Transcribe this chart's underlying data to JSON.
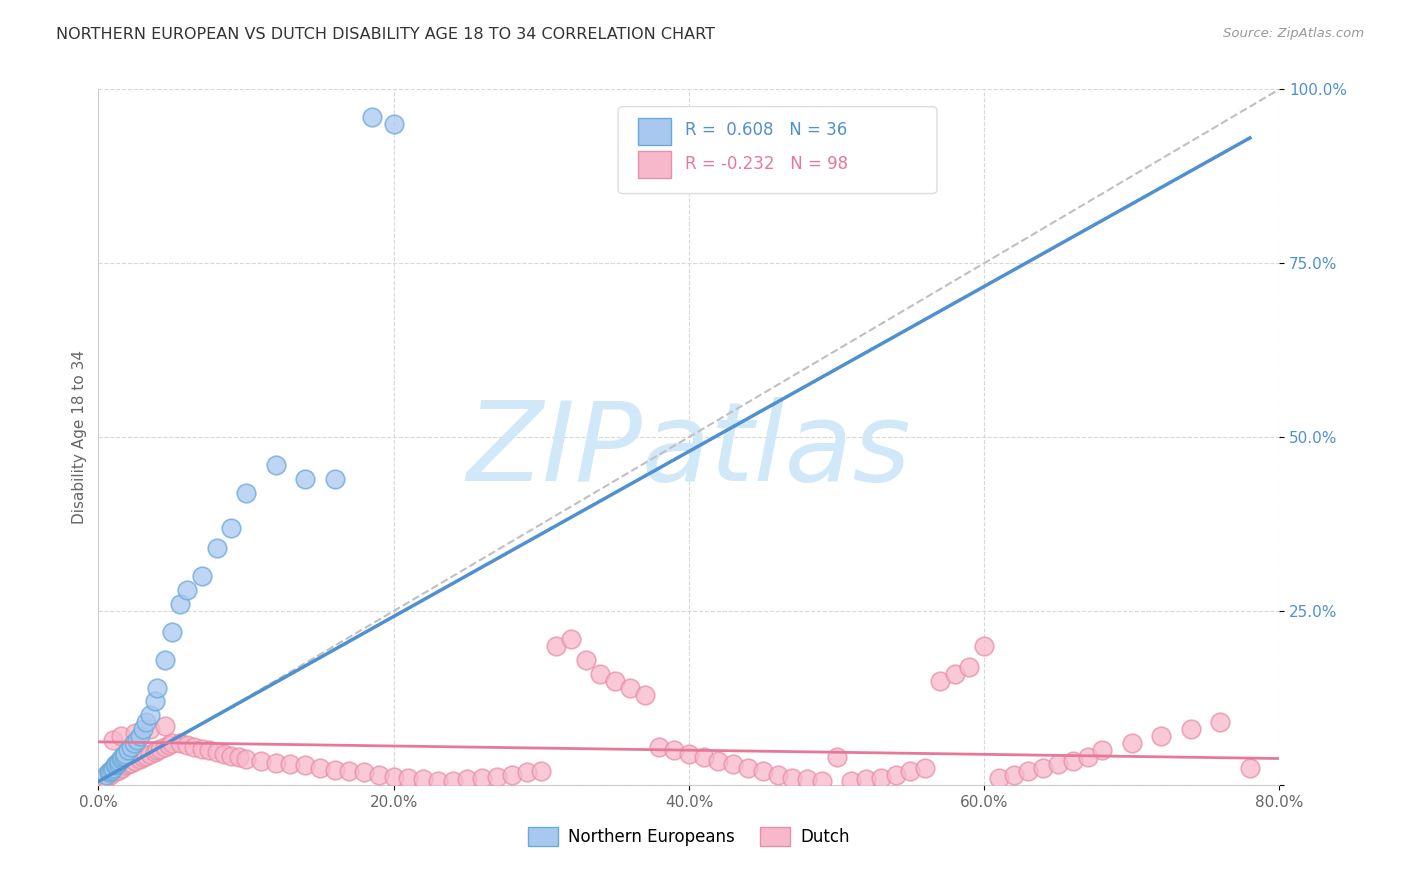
{
  "title": "NORTHERN EUROPEAN VS DUTCH DISABILITY AGE 18 TO 34 CORRELATION CHART",
  "source": "Source: ZipAtlas.com",
  "ylabel": "Disability Age 18 to 34",
  "xlim": [
    0.0,
    0.8
  ],
  "ylim": [
    0.0,
    1.0
  ],
  "xticks": [
    0.0,
    0.2,
    0.4,
    0.6,
    0.8
  ],
  "yticks": [
    0.0,
    0.25,
    0.5,
    0.75,
    1.0
  ],
  "xticklabels": [
    "0.0%",
    "20.0%",
    "40.0%",
    "60.0%",
    "80.0%"
  ],
  "yticklabels": [
    "",
    "25.0%",
    "50.0%",
    "75.0%",
    "100.0%"
  ],
  "legend_R1": "0.608",
  "legend_N1": "36",
  "legend_R2": "-0.232",
  "legend_N2": "98",
  "color_blue_fill": "#a8c8f0",
  "color_blue_edge": "#6aaad8",
  "color_pink_fill": "#f8b8cc",
  "color_pink_edge": "#e890a8",
  "color_blue_line": "#5090d0",
  "color_pink_line": "#e87898",
  "watermark_color": "#d0e8f8",
  "watermark": "ZIPatlas",
  "blue_line_x0": 0.0,
  "blue_line_y0": 0.005,
  "blue_line_x1": 0.78,
  "blue_line_y1": 0.93,
  "pink_line_x0": 0.0,
  "pink_line_y0": 0.062,
  "pink_line_x1": 0.8,
  "pink_line_y1": 0.038,
  "ref_line_x0": 0.0,
  "ref_line_y0": 0.0,
  "ref_line_x1": 0.8,
  "ref_line_y1": 1.0,
  "blue_x": [
    0.005,
    0.007,
    0.008,
    0.009,
    0.01,
    0.011,
    0.012,
    0.013,
    0.014,
    0.015,
    0.016,
    0.017,
    0.018,
    0.02,
    0.022,
    0.024,
    0.026,
    0.028,
    0.03,
    0.032,
    0.035,
    0.038,
    0.04,
    0.045,
    0.05,
    0.055,
    0.06,
    0.07,
    0.08,
    0.09,
    0.1,
    0.12,
    0.14,
    0.16,
    0.185,
    0.2
  ],
  "blue_y": [
    0.015,
    0.018,
    0.02,
    0.022,
    0.025,
    0.028,
    0.03,
    0.032,
    0.035,
    0.038,
    0.04,
    0.042,
    0.045,
    0.05,
    0.055,
    0.06,
    0.065,
    0.07,
    0.08,
    0.09,
    0.1,
    0.12,
    0.14,
    0.18,
    0.22,
    0.26,
    0.28,
    0.3,
    0.34,
    0.37,
    0.42,
    0.46,
    0.44,
    0.44,
    0.96,
    0.95
  ],
  "pink_x": [
    0.005,
    0.008,
    0.01,
    0.012,
    0.014,
    0.016,
    0.018,
    0.02,
    0.022,
    0.025,
    0.028,
    0.03,
    0.032,
    0.035,
    0.038,
    0.04,
    0.042,
    0.045,
    0.048,
    0.05,
    0.055,
    0.06,
    0.065,
    0.07,
    0.075,
    0.08,
    0.085,
    0.09,
    0.095,
    0.1,
    0.11,
    0.12,
    0.13,
    0.14,
    0.15,
    0.16,
    0.17,
    0.18,
    0.19,
    0.2,
    0.21,
    0.22,
    0.23,
    0.24,
    0.25,
    0.26,
    0.27,
    0.28,
    0.29,
    0.3,
    0.31,
    0.32,
    0.33,
    0.34,
    0.35,
    0.36,
    0.37,
    0.38,
    0.39,
    0.4,
    0.41,
    0.42,
    0.43,
    0.44,
    0.45,
    0.46,
    0.47,
    0.48,
    0.49,
    0.5,
    0.51,
    0.52,
    0.53,
    0.54,
    0.55,
    0.56,
    0.57,
    0.58,
    0.59,
    0.6,
    0.61,
    0.62,
    0.63,
    0.64,
    0.65,
    0.66,
    0.67,
    0.68,
    0.7,
    0.72,
    0.74,
    0.76,
    0.78,
    0.01,
    0.015,
    0.025,
    0.035,
    0.045
  ],
  "pink_y": [
    0.01,
    0.015,
    0.018,
    0.02,
    0.022,
    0.025,
    0.028,
    0.03,
    0.032,
    0.035,
    0.038,
    0.04,
    0.042,
    0.045,
    0.048,
    0.05,
    0.052,
    0.055,
    0.058,
    0.06,
    0.06,
    0.058,
    0.055,
    0.052,
    0.05,
    0.048,
    0.045,
    0.042,
    0.04,
    0.038,
    0.035,
    0.032,
    0.03,
    0.028,
    0.025,
    0.022,
    0.02,
    0.018,
    0.015,
    0.012,
    0.01,
    0.008,
    0.006,
    0.005,
    0.008,
    0.01,
    0.012,
    0.015,
    0.018,
    0.02,
    0.2,
    0.21,
    0.18,
    0.16,
    0.15,
    0.14,
    0.13,
    0.055,
    0.05,
    0.045,
    0.04,
    0.035,
    0.03,
    0.025,
    0.02,
    0.015,
    0.01,
    0.008,
    0.006,
    0.04,
    0.005,
    0.008,
    0.01,
    0.015,
    0.02,
    0.025,
    0.15,
    0.16,
    0.17,
    0.2,
    0.01,
    0.015,
    0.02,
    0.025,
    0.03,
    0.035,
    0.04,
    0.05,
    0.06,
    0.07,
    0.08,
    0.09,
    0.025,
    0.065,
    0.07,
    0.075,
    0.08,
    0.085
  ]
}
